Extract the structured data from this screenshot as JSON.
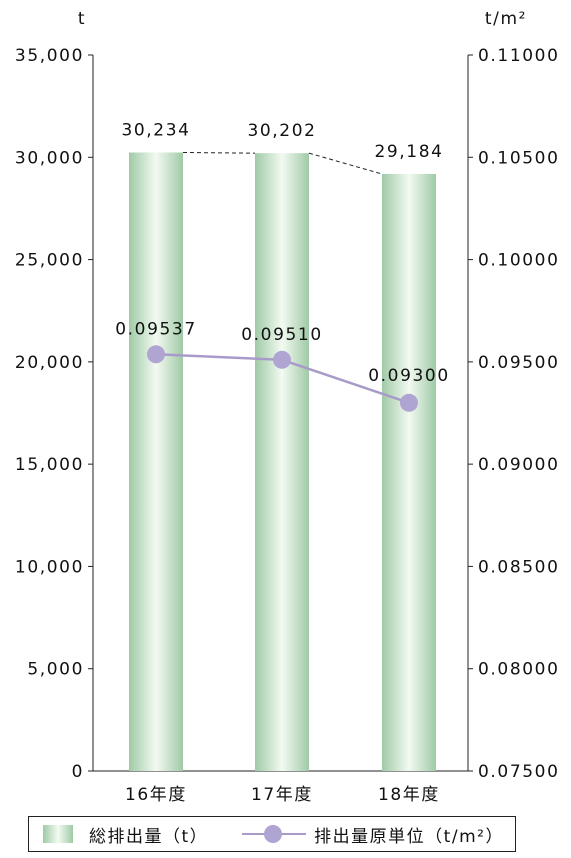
{
  "chart_data": {
    "type": "bar",
    "categories": [
      "16年度",
      "17年度",
      "18年度"
    ],
    "series": [
      {
        "name": "総排出量（t）",
        "type": "bar",
        "axis": "left",
        "values": [
          30234,
          30202,
          29184
        ],
        "labels": [
          "30,234",
          "30,202",
          "29,184"
        ],
        "color": "#a9d3b0"
      },
      {
        "name": "排出量原単位（t/m²）",
        "type": "line",
        "axis": "right",
        "values": [
          0.09537,
          0.0951,
          0.093
        ],
        "labels": [
          "0.09537",
          "0.09510",
          "0.09300"
        ],
        "color": "#a89bc9"
      }
    ],
    "y_left": {
      "unit": "t",
      "range": [
        0,
        35000
      ],
      "ticks": [
        "0",
        "5,000",
        "10,000",
        "15,000",
        "20,000",
        "25,000",
        "30,000",
        "35,000"
      ]
    },
    "y_right": {
      "unit": "t/m²",
      "range": [
        0.075,
        0.11
      ],
      "ticks": [
        "0.07500",
        "0.08000",
        "0.08500",
        "0.09000",
        "0.09500",
        "0.10000",
        "0.10500",
        "0.11000"
      ]
    },
    "legend_position": "bottom",
    "grid": false
  }
}
